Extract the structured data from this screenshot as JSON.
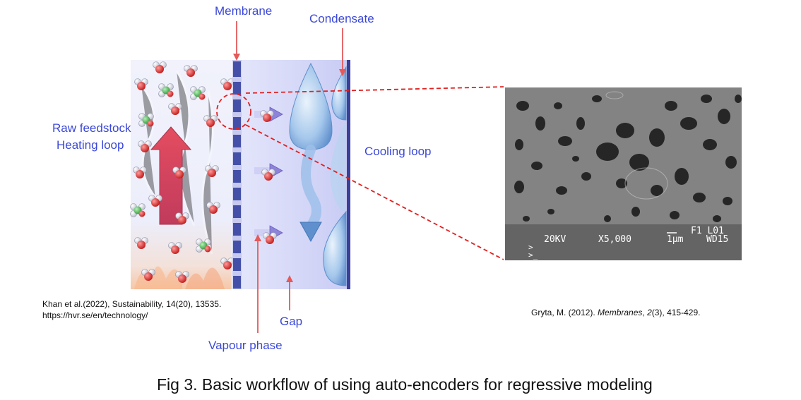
{
  "diagram": {
    "labels": {
      "membrane": "Membrane",
      "condensate": "Condensate",
      "raw_feedstock_line1": "Raw feedstock",
      "raw_feedstock_line2": "Heating loop",
      "cooling_loop": "Cooling loop",
      "gap": "Gap",
      "vapour_phase": "Vapour phase"
    },
    "colors": {
      "label_blue": "#3b48d8",
      "arrow_red": "#e45a5a",
      "membrane_dark": "#4450a8",
      "dashed_red": "#e02020"
    }
  },
  "citations": {
    "left_line1": "Khan et al.(2022), Sustainability, 14(20), 13535.",
    "left_line2": "https://hvr.se/en/technology/",
    "right_author": "Gryta, M. (2012). ",
    "right_journal": "Membranes",
    "right_sep": ", ",
    "right_volume": "2",
    "right_rest": "(3), 415-429."
  },
  "sem": {
    "line1": "F1 L01",
    "kv": "20KV",
    "mag": "X5,000",
    "scale": "1µm",
    "wd": "WD15"
  },
  "caption": "Fig 3. Basic workflow of using auto-encoders for regressive modeling"
}
